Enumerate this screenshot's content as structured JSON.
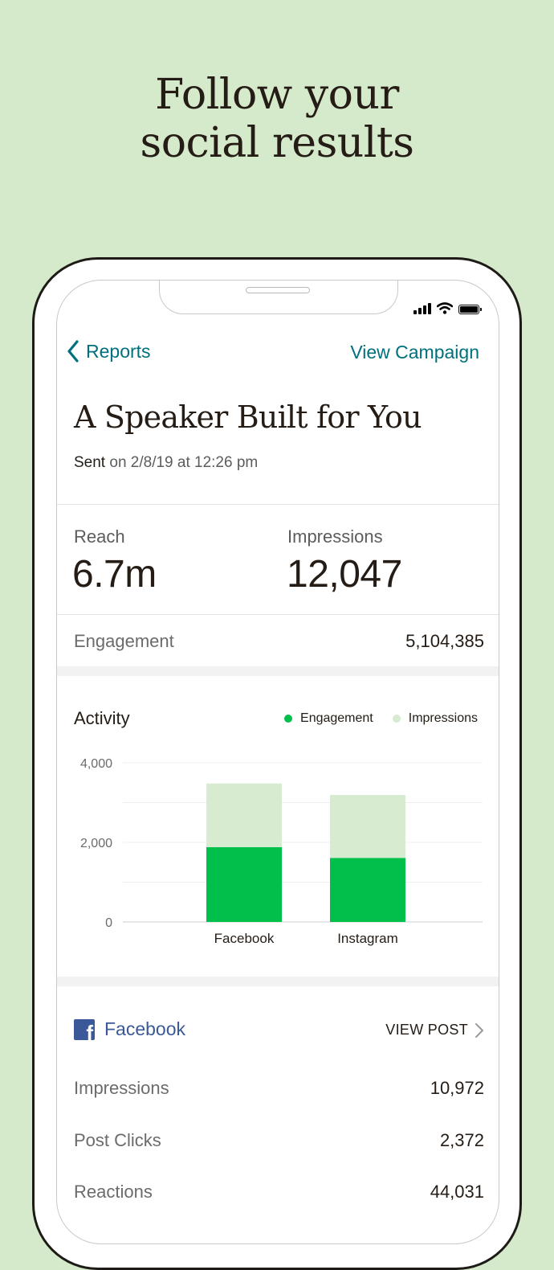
{
  "headline": {
    "line1": "Follow your",
    "line2": "social results"
  },
  "nav": {
    "back_label": "Reports",
    "action_label": "View Campaign"
  },
  "campaign": {
    "title": "A Speaker Built for You",
    "sent_word": "Sent",
    "sent_detail": "on 2/8/19 at 12:26 pm"
  },
  "metrics": {
    "reach": {
      "label": "Reach",
      "value": "6.7m"
    },
    "impressions": {
      "label": "Impressions",
      "value": "12,047"
    },
    "engagement": {
      "label": "Engagement",
      "value": "5,104,385"
    }
  },
  "activity": {
    "title": "Activity",
    "legend": {
      "engagement": "Engagement",
      "impressions": "Impressions"
    }
  },
  "colors": {
    "accent": "#00717c",
    "engagement": "#00c04b",
    "impressions": "#d6ebcf",
    "facebook": "#3b5998",
    "background": "#d5e9cb"
  },
  "chart_data": {
    "type": "bar",
    "stacked": true,
    "categories": [
      "Facebook",
      "Instagram"
    ],
    "series": [
      {
        "name": "Engagement",
        "values": [
          1880,
          1610
        ]
      },
      {
        "name": "Impressions",
        "values": [
          1600,
          1580
        ]
      }
    ],
    "y_ticks": [
      "4,000",
      "2,000",
      "0"
    ],
    "ylim": [
      0,
      4000
    ],
    "grid": true,
    "legend_position": "top-right"
  },
  "facebook": {
    "name": "Facebook",
    "view_post": "VIEW POST",
    "rows": [
      {
        "label": "Impressions",
        "value": "10,972"
      },
      {
        "label": "Post Clicks",
        "value": "2,372"
      },
      {
        "label": "Reactions",
        "value": "44,031"
      }
    ]
  },
  "icons": [
    "back-chevron-icon",
    "signal-icon",
    "wifi-icon",
    "battery-icon",
    "facebook-logo-icon",
    "chevron-right-icon"
  ]
}
